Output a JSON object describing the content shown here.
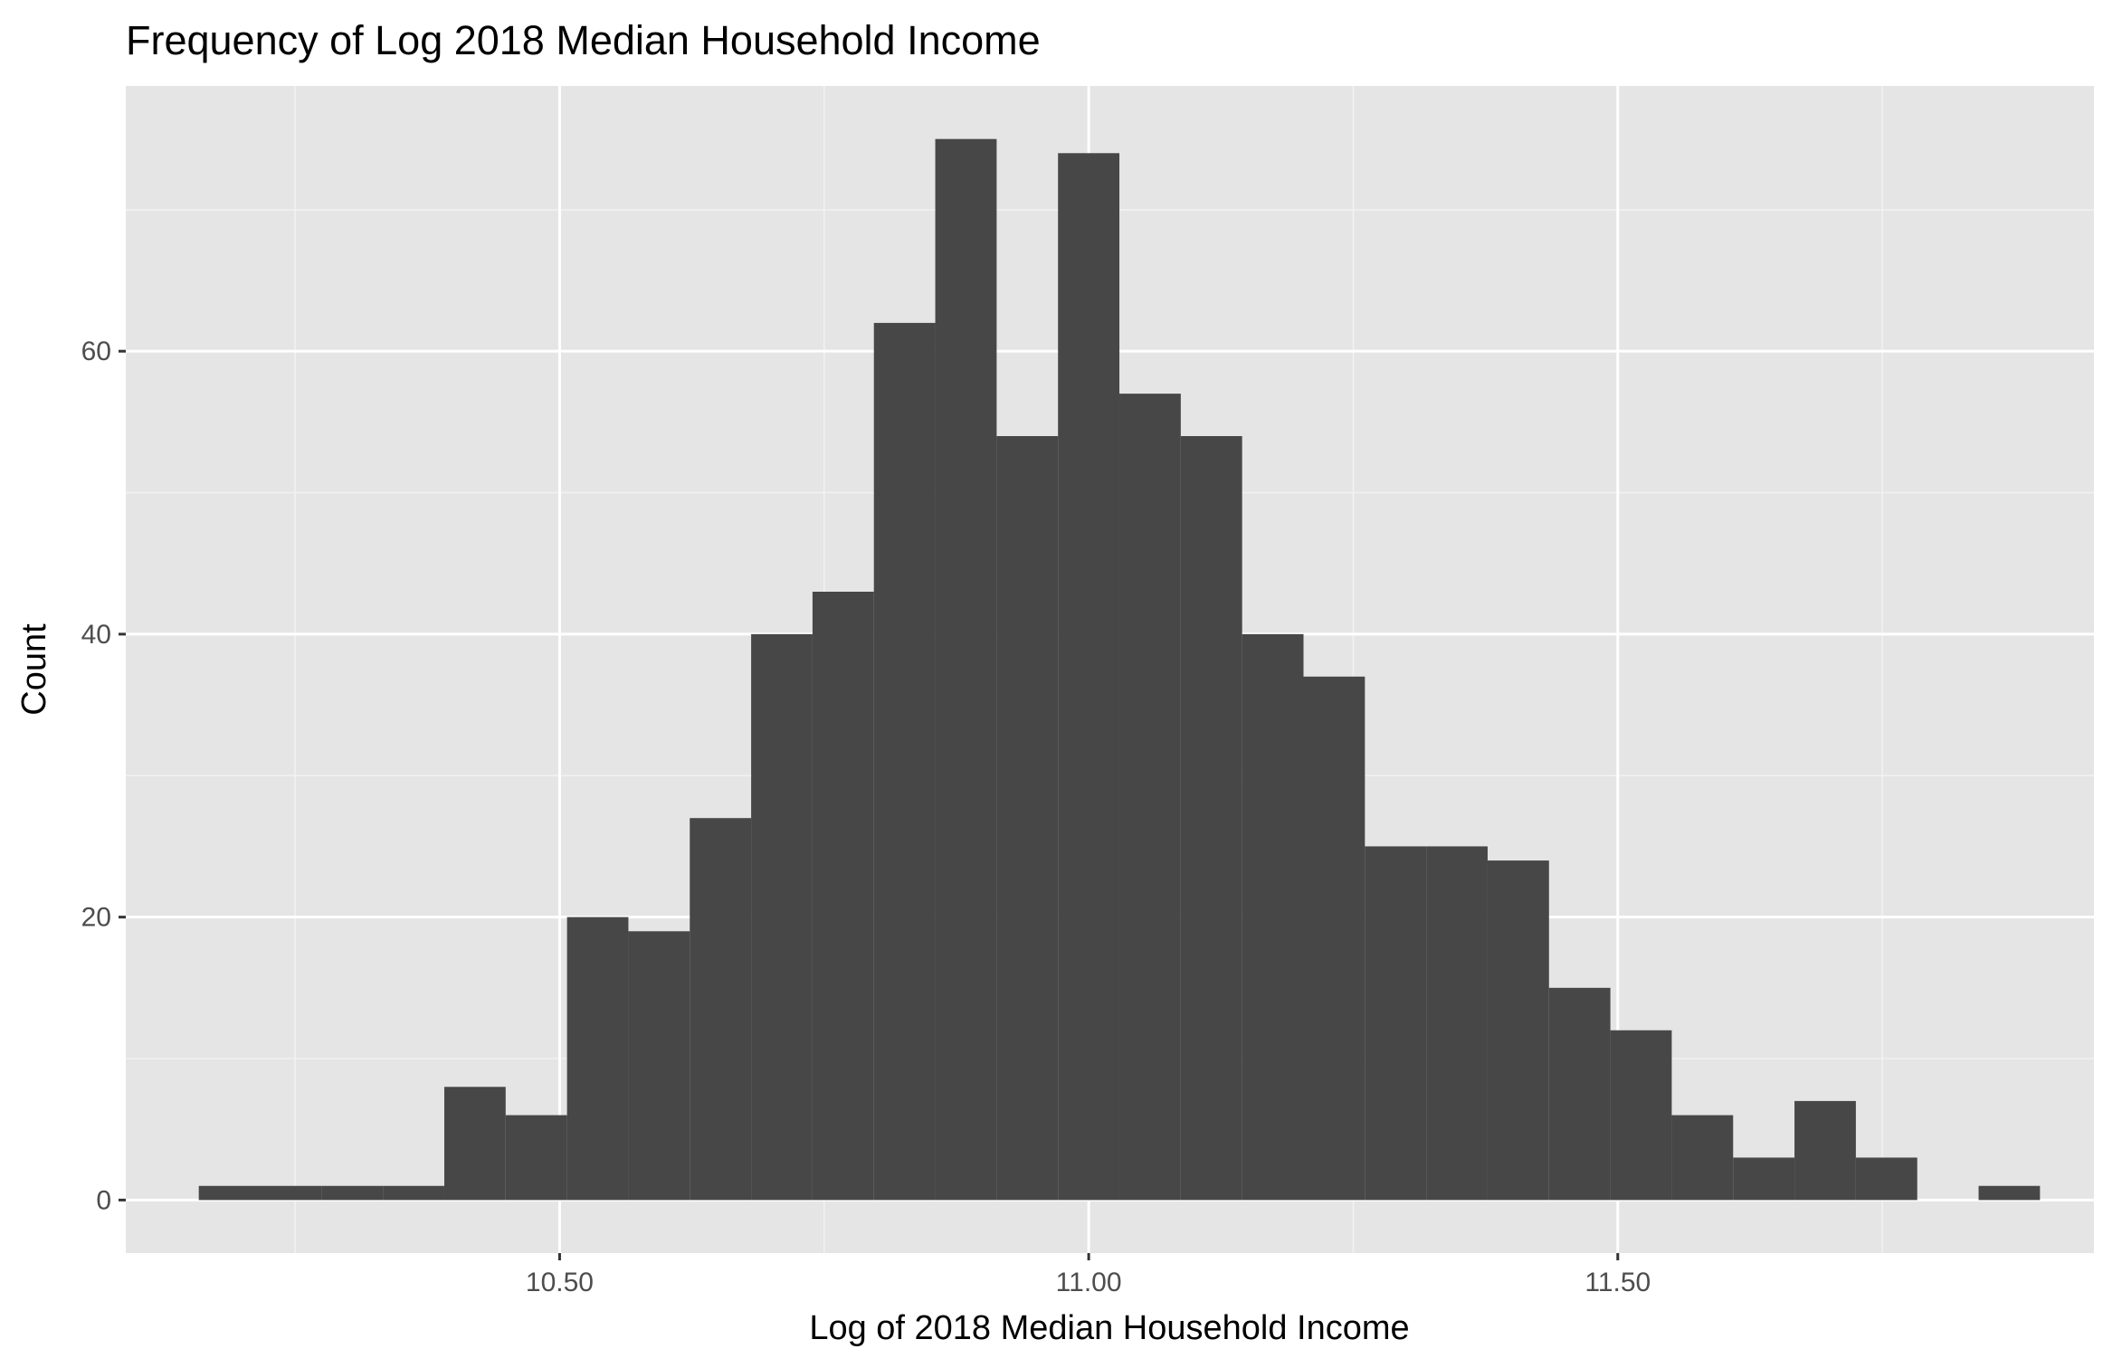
{
  "chart_data": {
    "type": "bar",
    "title": "Frequency of Log 2018 Median Household Income",
    "xlabel": "Log of 2018 Median Household Income",
    "ylabel": "Count",
    "xlim": [
      10.09,
      11.95
    ],
    "ylim": [
      -3.75,
      78.75
    ],
    "x_ticks": [
      10.5,
      11.0,
      11.5
    ],
    "x_tick_labels": [
      "10.50",
      "11.00",
      "11.50"
    ],
    "y_ticks": [
      0,
      20,
      40,
      60
    ],
    "y_tick_labels": [
      "0",
      "20",
      "40",
      "60"
    ],
    "grid": true,
    "bin_width": 0.058,
    "bins": [
      {
        "x0": 10.159,
        "x1": 10.217,
        "count": 1
      },
      {
        "x0": 10.217,
        "x1": 10.275,
        "count": 1
      },
      {
        "x0": 10.275,
        "x1": 10.333,
        "count": 1
      },
      {
        "x0": 10.333,
        "x1": 10.391,
        "count": 1
      },
      {
        "x0": 10.391,
        "x1": 10.449,
        "count": 8
      },
      {
        "x0": 10.449,
        "x1": 10.507,
        "count": 6
      },
      {
        "x0": 10.507,
        "x1": 10.565,
        "count": 20
      },
      {
        "x0": 10.565,
        "x1": 10.623,
        "count": 19
      },
      {
        "x0": 10.623,
        "x1": 10.681,
        "count": 27
      },
      {
        "x0": 10.681,
        "x1": 10.739,
        "count": 40
      },
      {
        "x0": 10.739,
        "x1": 10.797,
        "count": 43
      },
      {
        "x0": 10.797,
        "x1": 10.855,
        "count": 62
      },
      {
        "x0": 10.855,
        "x1": 10.913,
        "count": 75
      },
      {
        "x0": 10.913,
        "x1": 10.971,
        "count": 54
      },
      {
        "x0": 10.971,
        "x1": 11.029,
        "count": 74
      },
      {
        "x0": 11.029,
        "x1": 11.087,
        "count": 57
      },
      {
        "x0": 11.087,
        "x1": 11.145,
        "count": 54
      },
      {
        "x0": 11.145,
        "x1": 11.203,
        "count": 40
      },
      {
        "x0": 11.203,
        "x1": 11.261,
        "count": 37
      },
      {
        "x0": 11.261,
        "x1": 11.319,
        "count": 25
      },
      {
        "x0": 11.319,
        "x1": 11.377,
        "count": 25
      },
      {
        "x0": 11.377,
        "x1": 11.435,
        "count": 24
      },
      {
        "x0": 11.435,
        "x1": 11.493,
        "count": 15
      },
      {
        "x0": 11.493,
        "x1": 11.551,
        "count": 12
      },
      {
        "x0": 11.551,
        "x1": 11.609,
        "count": 6
      },
      {
        "x0": 11.609,
        "x1": 11.667,
        "count": 3
      },
      {
        "x0": 11.667,
        "x1": 11.725,
        "count": 7
      },
      {
        "x0": 11.725,
        "x1": 11.783,
        "count": 3
      },
      {
        "x0": 11.783,
        "x1": 11.841,
        "count": 0
      },
      {
        "x0": 11.841,
        "x1": 11.899,
        "count": 1
      }
    ],
    "colors": {
      "bar": "#474747",
      "panel": "#e5e5e5",
      "grid_major": "#ffffff",
      "grid_minor": "#f2f2f2",
      "tick_text": "#4d4d4d"
    }
  }
}
